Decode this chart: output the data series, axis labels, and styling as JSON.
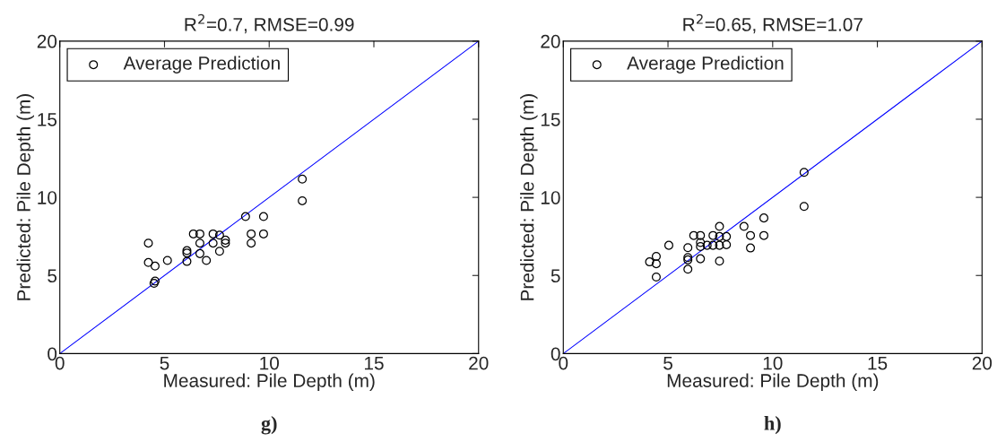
{
  "chart_data": [
    {
      "type": "scatter",
      "title": "R$^{2}$=0.7, RMSE=0.99",
      "xlabel": "Measured: Pile Depth (m)",
      "ylabel": "Predicted: Pile Depth (m)",
      "xlim": [
        0,
        20
      ],
      "ylim": [
        0,
        20
      ],
      "xticks": [
        0,
        5,
        10,
        15,
        20
      ],
      "yticks": [
        0,
        5,
        10,
        15,
        20
      ],
      "grid": false,
      "legend": "top left",
      "annotations": [
        "g)"
      ],
      "series": [
        {
          "name": "Average Prediction",
          "marker": "circle",
          "color": "#000000",
          "x": [
            4.23,
            4.23,
            4.55,
            4.55,
            4.5,
            5.14,
            6.07,
            6.07,
            6.07,
            6.38,
            6.69,
            6.69,
            6.69,
            7.0,
            7.32,
            7.32,
            7.63,
            7.63,
            7.91,
            7.91,
            8.87,
            9.14,
            9.14,
            9.73,
            9.73,
            11.58,
            11.58
          ],
          "values": [
            7.07,
            5.83,
            5.6,
            4.64,
            4.5,
            5.96,
            6.59,
            6.44,
            5.9,
            7.66,
            7.66,
            7.07,
            6.4,
            5.96,
            7.66,
            7.07,
            7.58,
            6.55,
            7.26,
            7.07,
            8.77,
            7.66,
            7.07,
            8.77,
            7.66,
            11.17,
            9.78
          ]
        },
        {
          "type": "line",
          "color": "#0000ff",
          "x": [
            0,
            20
          ],
          "values": [
            0,
            20
          ]
        }
      ]
    },
    {
      "type": "scatter",
      "title": "R$^{2}$=0.65, RMSE=1.07",
      "xlabel": "Measured: Pile Depth (m)",
      "ylabel": "Predicted: Pile Depth (m)",
      "xlim": [
        0,
        20
      ],
      "ylim": [
        0,
        20
      ],
      "xticks": [
        0,
        5,
        10,
        15,
        20
      ],
      "yticks": [
        0,
        5,
        10,
        15,
        20
      ],
      "grid": false,
      "legend": "top left",
      "annotations": [
        "h)"
      ],
      "series": [
        {
          "name": "Average Prediction",
          "marker": "circle",
          "color": "#000000",
          "x": [
            11.5,
            11.5,
            9.58,
            8.63,
            9.58,
            8.94,
            8.94,
            7.46,
            7.46,
            7.79,
            7.15,
            6.23,
            6.55,
            6.55,
            6.55,
            6.87,
            7.15,
            7.46,
            7.79,
            5.04,
            5.95,
            5.95,
            5.95,
            5.95,
            6.55,
            7.46,
            4.44,
            4.12,
            4.44,
            4.44
          ],
          "values": [
            11.6,
            9.42,
            8.68,
            8.14,
            7.56,
            7.56,
            6.76,
            8.14,
            7.49,
            7.49,
            7.56,
            7.56,
            7.56,
            7.11,
            6.85,
            6.93,
            6.93,
            6.93,
            6.97,
            6.93,
            6.78,
            6.15,
            6.0,
            5.4,
            6.07,
            5.92,
            6.22,
            5.87,
            5.75,
            4.9
          ]
        },
        {
          "type": "line",
          "color": "#0000ff",
          "x": [
            0,
            20
          ],
          "values": [
            0,
            20
          ]
        }
      ]
    }
  ]
}
